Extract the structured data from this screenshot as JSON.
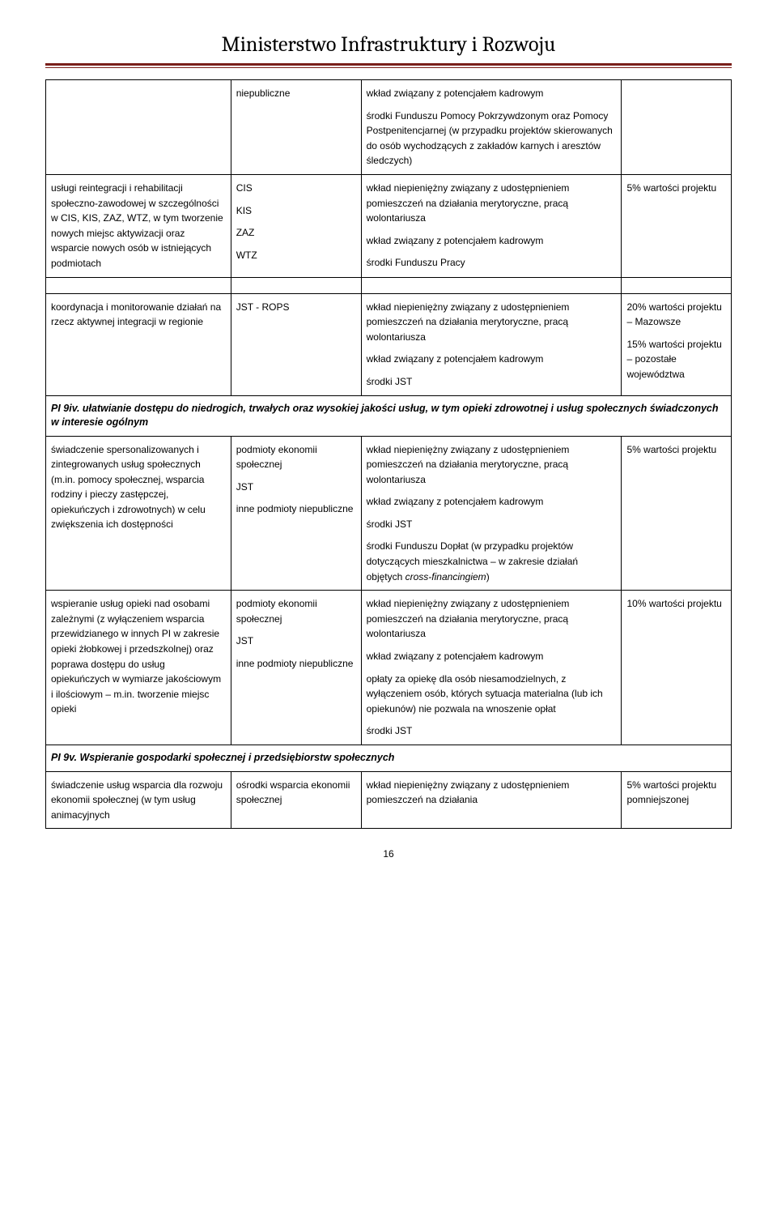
{
  "header": {
    "title": "Ministerstwo Infrastruktury i Rozwoju"
  },
  "rows": [
    {
      "c1": [],
      "c2": [
        "niepubliczne"
      ],
      "c3": [
        "wkład związany z potencjałem kadrowym",
        "środki Funduszu Pomocy Pokrzywdzonym oraz Pomocy Postpenitencjarnej (w przypadku projektów skierowanych do osób wychodzących z zakładów karnych i aresztów śledczych)"
      ],
      "c4": []
    },
    {
      "c1": [
        "usługi reintegracji i rehabilitacji społeczno-zawodowej w szczególności w CIS, KIS, ZAZ, WTZ, w tym tworzenie nowych miejsc aktywizacji oraz wsparcie nowych osób w istniejących podmiotach"
      ],
      "c2": [
        "CIS",
        "KIS",
        "ZAZ",
        "WTZ"
      ],
      "c3": [
        "wkład niepieniężny związany z udostępnieniem pomieszczeń na działania merytoryczne, pracą wolontariusza",
        "wkład związany z potencjałem kadrowym",
        "środki Funduszu Pracy"
      ],
      "c4": [
        "5% wartości projektu"
      ]
    },
    {
      "c1": [
        "koordynacja i monitorowanie działań na rzecz aktywnej integracji w regionie"
      ],
      "c2": [
        "JST - ROPS"
      ],
      "c3": [
        "wkład niepieniężny związany z udostępnieniem pomieszczeń na działania merytoryczne, pracą wolontariusza",
        "wkład związany z potencjałem kadrowym",
        "środki JST"
      ],
      "c4": [
        "20% wartości projektu – Mazowsze",
        "15% wartości projektu – pozostałe województwa"
      ]
    }
  ],
  "section1": {
    "title": "PI 9iv. ułatwianie dostępu do niedrogich, trwałych oraz wysokiej jakości usług, w tym opieki zdrowotnej i usług społecznych świadczonych w interesie ogólnym"
  },
  "rows2": [
    {
      "c1": [
        "świadczenie spersonalizowanych i zintegrowanych usług społecznych (m.in. pomocy społecznej, wsparcia rodziny i pieczy zastępczej, opiekuńczych i zdrowotnych) w celu zwiększenia ich dostępności"
      ],
      "c2": [
        "podmioty ekonomii społecznej",
        "JST",
        "inne podmioty niepubliczne"
      ],
      "c3": [
        "wkład niepieniężny związany z udostępnieniem pomieszczeń na działania merytoryczne, pracą wolontariusza",
        "wkład związany z potencjałem kadrowym",
        "środki JST",
        {
          "text": "środki Funduszu Dopłat (w przypadku projektów dotyczących mieszkalnictwa – w zakresie działań objętych ",
          "suffixItalic": "cross-financingiem",
          "after": ")"
        }
      ],
      "c4": [
        "5% wartości projektu"
      ]
    },
    {
      "c1": [
        "wspieranie usług opieki nad osobami zależnymi (z wyłączeniem wsparcia przewidzianego w innych PI w zakresie opieki żłobkowej i przedszkolnej) oraz poprawa dostępu do usług opiekuńczych w wymiarze jakościowym i ilościowym – m.in. tworzenie miejsc opieki"
      ],
      "c2": [
        "podmioty ekonomii społecznej",
        "JST",
        "inne podmioty niepubliczne"
      ],
      "c3": [
        "wkład niepieniężny związany z udostępnieniem pomieszczeń na działania merytoryczne, pracą wolontariusza",
        "wkład związany z potencjałem kadrowym",
        "opłaty za opiekę dla osób niesamodzielnych, z wyłączeniem osób, których sytuacja materialna (lub ich opiekunów) nie pozwala na wnoszenie opłat",
        "środki JST"
      ],
      "c4": [
        "10% wartości projektu"
      ]
    }
  ],
  "section2": {
    "title": "PI 9v. Wspieranie gospodarki społecznej i przedsiębiorstw społecznych"
  },
  "rows3": [
    {
      "c1": [
        "świadczenie usług wsparcia dla rozwoju ekonomii społecznej (w tym usług animacyjnych"
      ],
      "c2": [
        "ośrodki wsparcia ekonomii społecznej"
      ],
      "c3": [
        "wkład niepieniężny związany z udostępnieniem pomieszczeń na działania"
      ],
      "c4": [
        "5% wartości projektu pomniejszonej"
      ]
    }
  ],
  "footer": {
    "page": "16"
  }
}
